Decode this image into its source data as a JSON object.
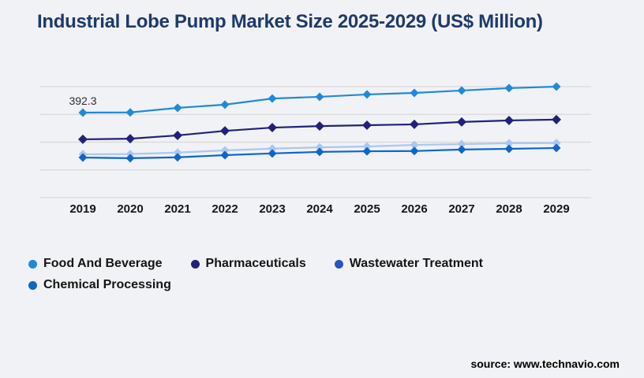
{
  "title": "Industrial Lobe Pump Market Size 2025-2029 (US$ Million)",
  "source_text": "source: www.technavio.com",
  "colors": {
    "background": "#F1F2F5",
    "title": "#1D3B69",
    "gridline": "#D8D8D8",
    "axis_text": "#161616",
    "annotation_text": "#2E2E2E"
  },
  "chart_data": {
    "type": "line",
    "title": "Industrial Lobe Pump Market Size 2025-2029 (US$ Million)",
    "xlabel": "",
    "ylabel": "US$ Million",
    "categories": [
      "2019",
      "2020",
      "2021",
      "2022",
      "2023",
      "2024",
      "2025",
      "2026",
      "2027",
      "2028",
      "2029"
    ],
    "series": [
      {
        "name": "Food And Beverage",
        "color": "#1F8AD9",
        "legend_color": "#1F8AD9",
        "values": [
          392.3,
          393,
          414,
          429,
          457,
          465,
          476,
          483,
          494,
          505,
          512
        ]
      },
      {
        "name": "Pharmaceuticals",
        "color": "#21217B",
        "legend_color": "#21217B",
        "values": [
          269,
          272,
          287,
          308,
          323,
          330,
          334,
          338,
          349,
          356,
          360
        ]
      },
      {
        "name": "Wastewater Treatment",
        "color": "#A9C7F1",
        "legend_color": "#2355C8",
        "values": [
          200,
          201,
          208,
          218,
          226,
          232,
          236,
          243,
          247,
          251,
          252
        ]
      },
      {
        "name": "Chemical Processing",
        "color": "#0F66C9",
        "legend_color": "#0F66C9",
        "values": [
          185,
          182,
          186,
          196,
          204,
          211,
          214,
          215,
          222,
          225,
          229
        ]
      }
    ],
    "annotations": [
      {
        "series_index": 0,
        "x_index": 0,
        "text": "392.3"
      }
    ],
    "ylim": [
      0,
      512
    ],
    "grid": true,
    "gridline_count": 5,
    "legend_position": "bottom",
    "y_axis_labels_visible": false,
    "marker": "diamond"
  }
}
